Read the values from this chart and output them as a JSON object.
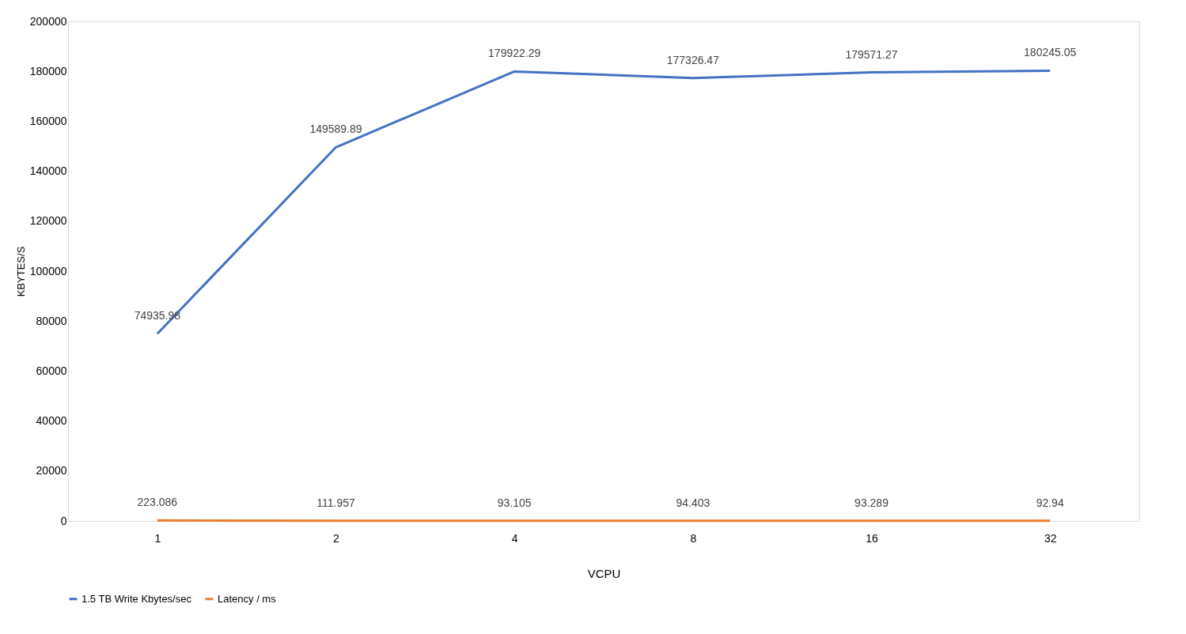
{
  "chart_data": {
    "type": "line",
    "xlabel": "VCPU",
    "ylabel": "KBYTES/S",
    "categories": [
      "1",
      "2",
      "4",
      "8",
      "16",
      "32"
    ],
    "series": [
      {
        "name": "1.5 TB Write Kbytes/sec",
        "color": "#4472c4",
        "values": [
          74935.98,
          149589.89,
          179922.29,
          177326.47,
          179571.27,
          180245.05
        ]
      },
      {
        "name": "Latency / ms",
        "color": "#ed7d31",
        "values": [
          223.086,
          111.957,
          93.105,
          94.403,
          93.289,
          92.94
        ]
      }
    ],
    "ylim": [
      0,
      200000
    ],
    "yticks": [
      0,
      20000,
      40000,
      60000,
      80000,
      100000,
      120000,
      140000,
      160000,
      180000,
      200000
    ],
    "data_labels": true,
    "legend": "bottom",
    "grid": false,
    "marker": "none",
    "line_style": "solid"
  }
}
